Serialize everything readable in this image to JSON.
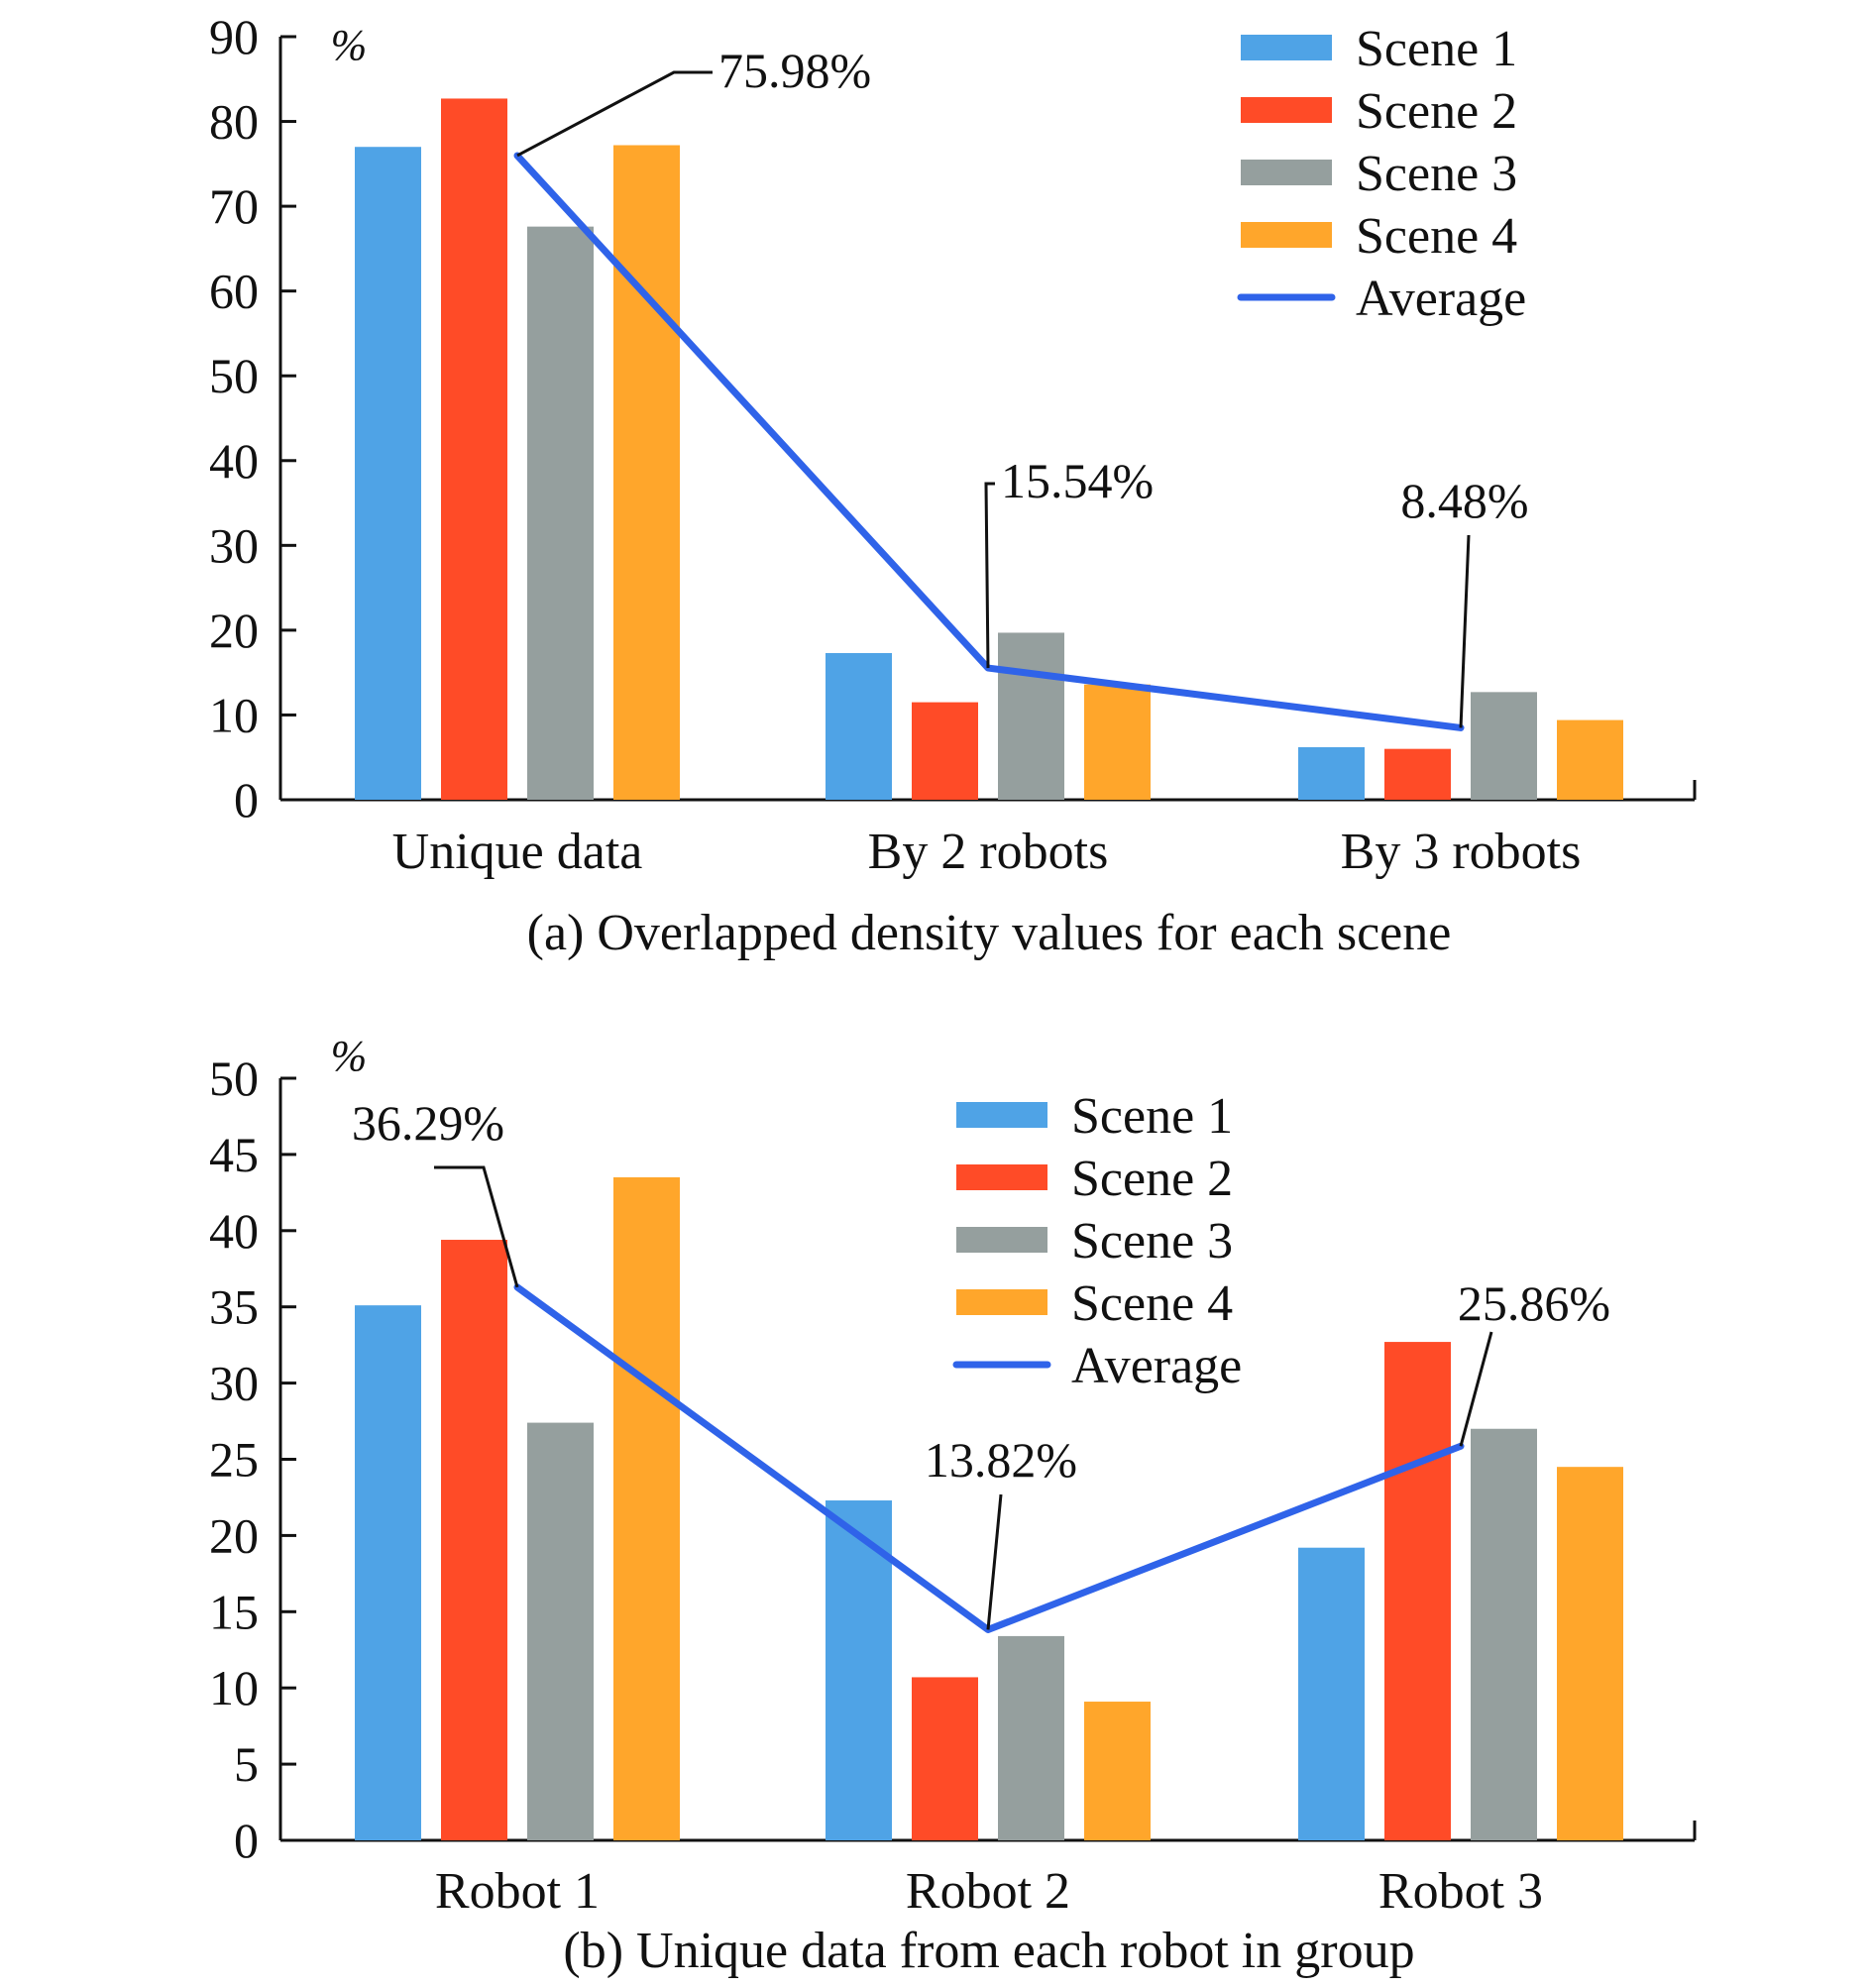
{
  "figure": {
    "background": "#ffffff",
    "colors": {
      "Scene 1": "#4FA3E6",
      "Scene 2": "#FF4B27",
      "Scene 3": "#959F9E",
      "Scene 4": "#FFA62B",
      "Average": "#2F63E9",
      "axis": "#111111"
    }
  },
  "chart_data": [
    {
      "type": "bar",
      "caption": "(a) Overlapped density values for each scene",
      "unit": "%",
      "categories": [
        "Unique data",
        "By 2 robots",
        "By 3 robots"
      ],
      "series": [
        {
          "name": "Scene 1",
          "values": [
            77,
            17.3,
            6.2
          ]
        },
        {
          "name": "Scene 2",
          "values": [
            82.7,
            11.5,
            6
          ]
        },
        {
          "name": "Scene 3",
          "values": [
            67.6,
            19.7,
            12.7
          ]
        },
        {
          "name": "Scene 4",
          "values": [
            77.2,
            13.6,
            9.4
          ]
        }
      ],
      "line": {
        "name": "Average",
        "values": [
          75.98,
          15.54,
          8.48
        ]
      },
      "annotations": [
        "75.98%",
        "15.54%",
        "8.48%"
      ],
      "ylim": [
        0,
        90
      ],
      "yticks": [
        0,
        10,
        20,
        30,
        40,
        50,
        60,
        70,
        80,
        90
      ],
      "legend": "top-right",
      "grid": false
    },
    {
      "type": "bar",
      "caption": "(b) Unique data from each robot in group",
      "unit": "%",
      "categories": [
        "Robot 1",
        "Robot 2",
        "Robot 3"
      ],
      "series": [
        {
          "name": "Scene 1",
          "values": [
            35.1,
            22.3,
            19.2
          ]
        },
        {
          "name": "Scene 2",
          "values": [
            39.4,
            10.7,
            32.7
          ]
        },
        {
          "name": "Scene 3",
          "values": [
            27.4,
            13.4,
            27
          ]
        },
        {
          "name": "Scene 4",
          "values": [
            43.5,
            9.1,
            24.5
          ]
        }
      ],
      "line": {
        "name": "Average",
        "values": [
          36.29,
          13.82,
          25.86
        ]
      },
      "annotations": [
        "36.29%",
        "13.82%",
        "25.86%"
      ],
      "ylim": [
        0,
        50
      ],
      "yticks": [
        0,
        5,
        10,
        15,
        20,
        25,
        30,
        35,
        40,
        45,
        50
      ],
      "legend": "top-center",
      "grid": false
    }
  ]
}
